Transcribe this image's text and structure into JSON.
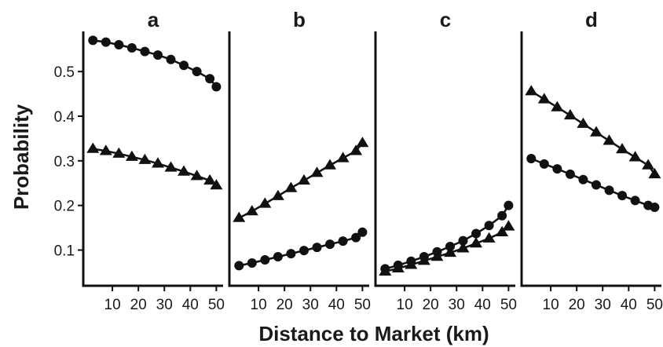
{
  "chart_data": {
    "type": "line",
    "ylabel": "Probability",
    "xlabel": "Distance to Market (km)",
    "ylim": [
      0.02,
      0.59
    ],
    "xlim": [
      0,
      52
    ],
    "yticks": [
      0.1,
      0.2,
      0.3,
      0.4,
      0.5
    ],
    "xticks": [
      10,
      20,
      30,
      40,
      50
    ],
    "grid": false,
    "marker_shapes": [
      "circle",
      "triangle"
    ],
    "x": [
      2.5,
      7.5,
      12.5,
      17.5,
      22.5,
      27.5,
      32.5,
      37.5,
      42.5,
      47.5,
      50
    ],
    "panels": [
      {
        "title": "a",
        "series": [
          {
            "marker": "circle",
            "values": [
              0.57,
              0.566,
              0.56,
              0.553,
              0.545,
              0.537,
              0.527,
              0.514,
              0.5,
              0.484,
              0.466
            ]
          },
          {
            "marker": "triangle",
            "values": [
              0.327,
              0.322,
              0.316,
              0.309,
              0.302,
              0.294,
              0.285,
              0.276,
              0.266,
              0.256,
              0.245
            ]
          }
        ]
      },
      {
        "title": "b",
        "series": [
          {
            "marker": "triangle",
            "values": [
              0.172,
              0.187,
              0.204,
              0.221,
              0.239,
              0.256,
              0.273,
              0.29,
              0.306,
              0.322,
              0.34
            ]
          },
          {
            "marker": "circle",
            "values": [
              0.065,
              0.071,
              0.078,
              0.085,
              0.092,
              0.099,
              0.106,
              0.113,
              0.12,
              0.128,
              0.14
            ]
          }
        ]
      },
      {
        "title": "c",
        "series": [
          {
            "marker": "circle",
            "values": [
              0.058,
              0.066,
              0.075,
              0.085,
              0.096,
              0.108,
              0.121,
              0.137,
              0.155,
              0.177,
              0.2
            ]
          },
          {
            "marker": "triangle",
            "values": [
              0.052,
              0.059,
              0.067,
              0.076,
              0.085,
              0.094,
              0.104,
              0.115,
              0.126,
              0.14,
              0.153
            ]
          }
        ]
      },
      {
        "title": "d",
        "series": [
          {
            "marker": "triangle",
            "values": [
              0.456,
              0.438,
              0.42,
              0.402,
              0.383,
              0.364,
              0.345,
              0.326,
              0.308,
              0.29,
              0.27
            ]
          },
          {
            "marker": "circle",
            "values": [
              0.305,
              0.293,
              0.282,
              0.27,
              0.258,
              0.246,
              0.234,
              0.222,
              0.211,
              0.2,
              0.196
            ]
          }
        ]
      }
    ]
  }
}
